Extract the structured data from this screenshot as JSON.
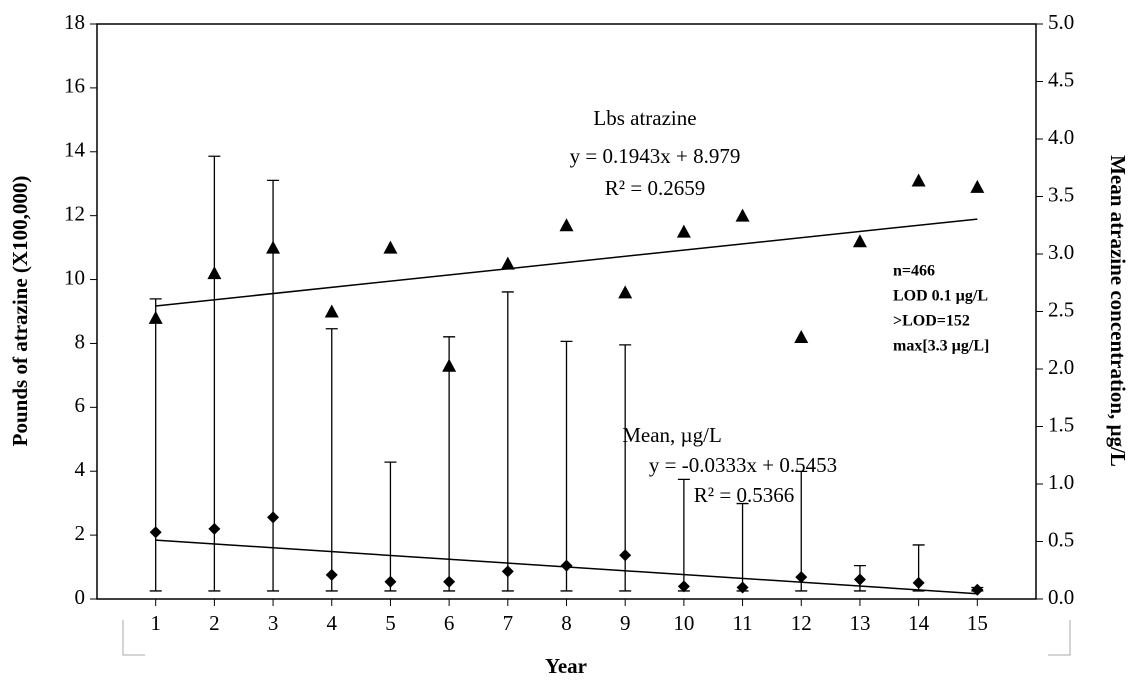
{
  "chart_data": {
    "type": "scatter",
    "x_label": "Year",
    "y_label": "Pounds of atrazine (X100,000)",
    "y2_label": "Mean atrazine concentration, µg/L",
    "x": [
      1,
      2,
      3,
      4,
      5,
      6,
      7,
      8,
      9,
      10,
      11,
      12,
      13,
      14,
      15
    ],
    "xlim": [
      0,
      16
    ],
    "xticks": [
      1,
      2,
      3,
      4,
      5,
      6,
      7,
      8,
      9,
      10,
      11,
      12,
      13,
      14,
      15
    ],
    "ylim": [
      0,
      18
    ],
    "yticks": [
      0,
      2,
      4,
      6,
      8,
      10,
      12,
      14,
      16,
      18
    ],
    "y2lim": [
      0,
      5
    ],
    "y2ticks": [
      {
        "value": 0,
        "label": "0.0"
      },
      0.5,
      {
        "value": 1,
        "label": "1.0"
      },
      1.5,
      {
        "value": 2,
        "label": "2.0"
      },
      2.5,
      {
        "value": 3,
        "label": "3.0"
      },
      3.5,
      {
        "value": 4,
        "label": "4.0"
      },
      4.5,
      {
        "value": 5,
        "label": "5.0"
      }
    ],
    "series": [
      {
        "name": "Lbs atrazine",
        "color": "#000000",
        "marker": "triangle",
        "values": [
          8.8,
          10.2,
          11.0,
          9.0,
          11.0,
          7.3,
          10.5,
          11.7,
          9.6,
          11.5,
          12.0,
          8.2,
          11.2,
          13.1,
          12.9
        ],
        "trendline": {
          "slope": 0.1943,
          "intercept": 8.979,
          "equation": "y = 0.1943x + 8.979",
          "r2": "R² = 0.2659"
        }
      },
      {
        "name": "Mean, µg/L",
        "color": "#000000",
        "marker": "diamond",
        "axis": "y2",
        "values": [
          0.58,
          0.61,
          0.71,
          0.21,
          0.15,
          0.15,
          0.24,
          0.29,
          0.38,
          0.11,
          0.1,
          0.19,
          0.17,
          0.14,
          0.08
        ],
        "lower": [
          0.07,
          0.07,
          0.07,
          0.07,
          0.07,
          0.07,
          0.07,
          0.07,
          0.07,
          0.07,
          0.07,
          0.07,
          0.07,
          0.07,
          0.07
        ],
        "upper": [
          2.61,
          3.85,
          3.64,
          2.35,
          1.19,
          2.28,
          2.67,
          2.24,
          2.21,
          1.04,
          0.83,
          1.11,
          0.29,
          0.47,
          0.1
        ],
        "trendline": {
          "slope": -0.0333,
          "intercept": 0.5453,
          "equation": "y = -0.0333x + 0.5453",
          "r2": "R² = 0.5366"
        }
      }
    ],
    "notes": [
      "n=466",
      "LOD 0.1 µg/L",
      ">LOD=152",
      "max[3.3 µg/L]"
    ]
  }
}
